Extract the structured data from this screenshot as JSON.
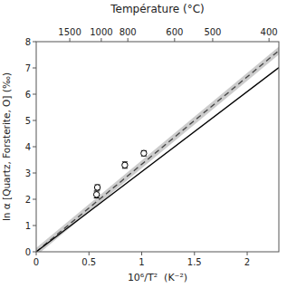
{
  "chart_data": {
    "type": "scatter",
    "title": "Température (°C)",
    "x2label": "Température (°C)",
    "xlabel": "10⁶/T²  (K⁻²)",
    "ylabel": "ln α [Quartz, Forsterite, O] (‰)",
    "xlim": [
      0,
      2.3
    ],
    "ylim": [
      0,
      8
    ],
    "xticks": [
      0,
      0.5,
      1,
      1.5,
      2
    ],
    "yticks": [
      0,
      1,
      2,
      3,
      4,
      5,
      6,
      7,
      8
    ],
    "x2lim": [
      0,
      2.3
    ],
    "x2ticks": [
      {
        "value": 0.3180603,
        "label": "1500"
      },
      {
        "value": 0.61693705,
        "label": "1000"
      },
      {
        "value": 0.86831867,
        "label": "800"
      },
      {
        "value": 1.31167617,
        "label": "600"
      },
      {
        "value": 1.67292635,
        "label": "500"
      },
      {
        "value": 2.2068677,
        "label": "400"
      }
    ],
    "grid": false,
    "series": [
      {
        "type": "line",
        "line_style": "dashed",
        "color": "#444444",
        "band_color": "#cccccc",
        "x": [
          0,
          2.3
        ],
        "values": [
          0,
          7.659
        ],
        "band": 0.15
      },
      {
        "type": "line",
        "line_style": "solid",
        "color": "#000000",
        "x": [
          0,
          2.3
        ],
        "values": [
          0,
          7.015
        ]
      },
      {
        "type": "scatter",
        "marker": "circle",
        "color": "#000000",
        "x": [
          0.572,
          0.58,
          0.84,
          1.02
        ],
        "values": [
          2.18,
          2.45,
          3.3,
          3.75
        ],
        "errors": [
          0.13,
          0.1,
          0.12,
          0.1
        ]
      }
    ]
  }
}
